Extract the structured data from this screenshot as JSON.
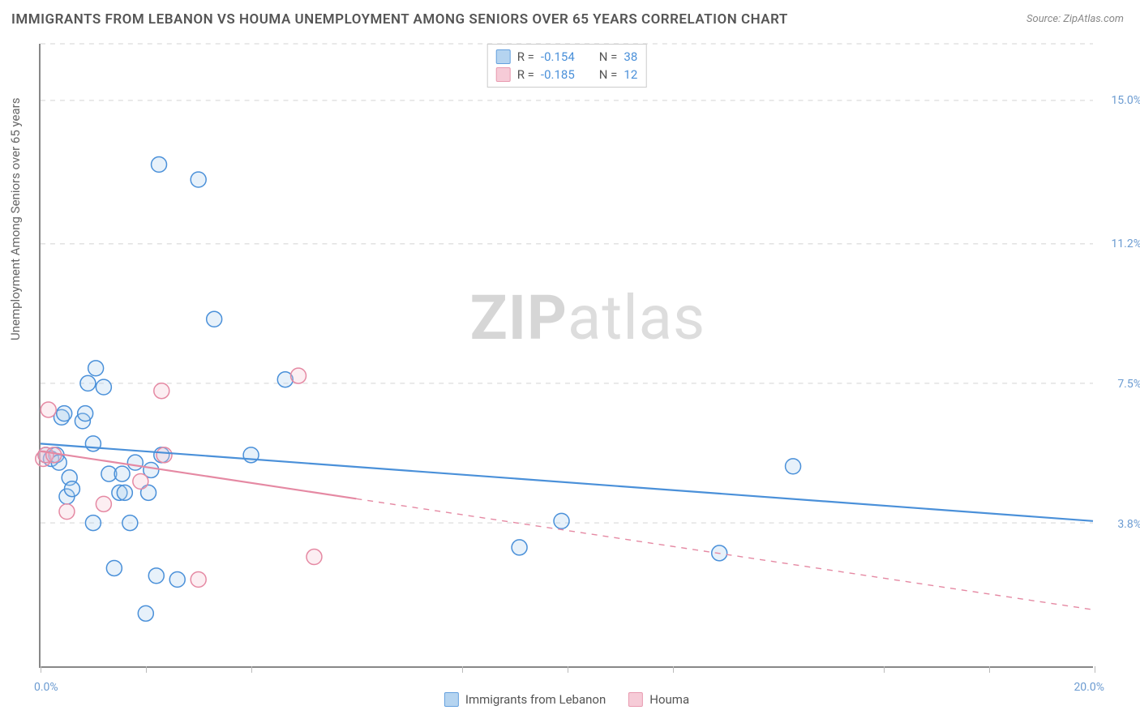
{
  "title": "IMMIGRANTS FROM LEBANON VS HOUMA UNEMPLOYMENT AMONG SENIORS OVER 65 YEARS CORRELATION CHART",
  "source": "Source: ZipAtlas.com",
  "ylabel": "Unemployment Among Seniors over 65 years",
  "watermark_a": "ZIP",
  "watermark_b": "atlas",
  "chart": {
    "type": "scatter",
    "xlim": [
      0,
      20
    ],
    "ylim": [
      0,
      16.5
    ],
    "y_ticks": [
      3.8,
      7.5,
      11.2,
      15.0
    ],
    "y_tick_labels": [
      "3.8%",
      "7.5%",
      "11.2%",
      "15.0%"
    ],
    "x_minor_ticks": [
      0,
      2,
      4,
      8,
      10,
      12,
      16,
      18,
      20
    ],
    "x_origin_label": "0.0%",
    "x_end_label": "20.0%",
    "background_color": "#ffffff",
    "grid_color": "#e2e2e2",
    "axis_label_color": "#6b9bd1",
    "marker_radius": 9.5,
    "marker_stroke_width": 1.5,
    "marker_fill_opacity": 0.28,
    "line_width": 2.2,
    "series": [
      {
        "name": "Immigrants from Lebanon",
        "color_stroke": "#4a90d9",
        "color_fill": "#a9cdee",
        "R": "-0.154",
        "N": "38",
        "trend": {
          "x1": 0,
          "y1": 5.9,
          "x2": 20,
          "y2": 3.85,
          "solid_until_x": 20
        },
        "points": [
          [
            0.1,
            5.6
          ],
          [
            0.2,
            5.5
          ],
          [
            0.3,
            5.6
          ],
          [
            0.35,
            5.4
          ],
          [
            0.4,
            6.6
          ],
          [
            0.45,
            6.7
          ],
          [
            0.5,
            4.5
          ],
          [
            0.55,
            5.0
          ],
          [
            0.6,
            4.7
          ],
          [
            0.8,
            6.5
          ],
          [
            0.85,
            6.7
          ],
          [
            0.9,
            7.5
          ],
          [
            1.0,
            5.9
          ],
          [
            1.0,
            3.8
          ],
          [
            1.05,
            7.9
          ],
          [
            1.2,
            7.4
          ],
          [
            1.3,
            5.1
          ],
          [
            1.4,
            2.6
          ],
          [
            1.5,
            4.6
          ],
          [
            1.55,
            5.1
          ],
          [
            1.6,
            4.6
          ],
          [
            1.7,
            3.8
          ],
          [
            1.8,
            5.4
          ],
          [
            2.0,
            1.4
          ],
          [
            2.05,
            4.6
          ],
          [
            2.1,
            5.2
          ],
          [
            2.2,
            2.4
          ],
          [
            2.25,
            13.3
          ],
          [
            2.3,
            5.6
          ],
          [
            2.6,
            2.3
          ],
          [
            3.0,
            12.9
          ],
          [
            3.3,
            9.2
          ],
          [
            4.0,
            5.6
          ],
          [
            4.65,
            7.6
          ],
          [
            9.1,
            3.15
          ],
          [
            9.9,
            3.85
          ],
          [
            12.9,
            3.0
          ],
          [
            14.3,
            5.3
          ]
        ]
      },
      {
        "name": "Houma",
        "color_stroke": "#e589a3",
        "color_fill": "#f5c3d1",
        "R": "-0.185",
        "N": "12",
        "trend": {
          "x1": 0,
          "y1": 5.7,
          "x2": 20,
          "y2": 1.5,
          "solid_until_x": 6.0
        },
        "points": [
          [
            0.05,
            5.5
          ],
          [
            0.1,
            5.6
          ],
          [
            0.15,
            6.8
          ],
          [
            0.25,
            5.6
          ],
          [
            0.5,
            4.1
          ],
          [
            1.2,
            4.3
          ],
          [
            1.9,
            4.9
          ],
          [
            2.3,
            7.3
          ],
          [
            2.35,
            5.6
          ],
          [
            3.0,
            2.3
          ],
          [
            4.9,
            7.7
          ],
          [
            5.2,
            2.9
          ]
        ]
      }
    ]
  },
  "legend_bottom": [
    {
      "label": "Immigrants from Lebanon",
      "stroke": "#4a90d9",
      "fill": "#a9cdee"
    },
    {
      "label": "Houma",
      "stroke": "#e589a3",
      "fill": "#f5c3d1"
    }
  ]
}
